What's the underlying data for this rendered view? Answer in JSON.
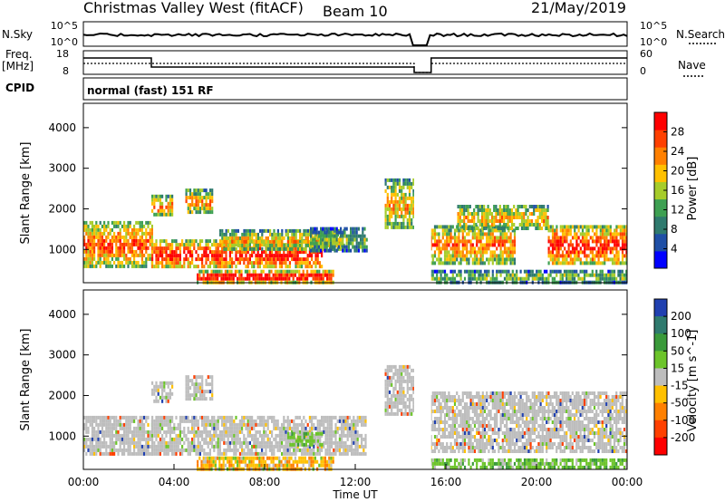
{
  "header": {
    "station": "Christmas Valley West (fitACF)",
    "beam": "Beam 10",
    "date": "21/May/2019"
  },
  "strips": {
    "nsky_label": "N.Sky",
    "nsky_ticks": [
      "10^5",
      "10^0"
    ],
    "nsearch_label": "N.Search",
    "nsearch_ticks": [
      "10^5",
      "10^0"
    ],
    "freq_label_1": "Freq.",
    "freq_label_2": "[MHz]",
    "freq_ticks": [
      "18",
      "8"
    ],
    "nave_label": "Nave",
    "nave_ticks": [
      "60",
      "0"
    ],
    "cpid_label": "CPID",
    "cpid_text": "normal (fast) 151 RF"
  },
  "chart_data": [
    {
      "type": "heatmap",
      "name": "power",
      "ylabel": "Slant Range [km]",
      "yticks": [
        1000,
        2000,
        3000,
        4000
      ],
      "ylim": [
        180,
        4600
      ],
      "xlim": [
        0,
        24
      ],
      "colorbar_label": "Power [dB]",
      "colorbar_ticks": [
        4,
        8,
        12,
        16,
        20,
        24,
        28
      ],
      "colorbar_range": [
        0,
        32
      ],
      "colors": [
        "#0000ff",
        "#1f4fa6",
        "#2f7a6e",
        "#3ea052",
        "#a6cc2a",
        "#ffc000",
        "#ff8000",
        "#ff4000",
        "#ff0000"
      ],
      "echo_regions": [
        {
          "t0": 0.0,
          "t1": 3.0,
          "r0": 600,
          "r1": 1700,
          "level": 0.75
        },
        {
          "t0": 3.0,
          "t1": 3.9,
          "r0": 1850,
          "r1": 2350,
          "level": 0.7
        },
        {
          "t0": 3.0,
          "t1": 10.5,
          "r0": 550,
          "r1": 1250,
          "level": 0.85
        },
        {
          "t0": 4.5,
          "t1": 5.7,
          "r0": 1900,
          "r1": 2500,
          "level": 0.65
        },
        {
          "t0": 5.0,
          "t1": 11.0,
          "r0": 220,
          "r1": 500,
          "level": 0.95
        },
        {
          "t0": 6.0,
          "t1": 11.5,
          "r0": 1000,
          "r1": 1500,
          "level": 0.6
        },
        {
          "t0": 10.0,
          "t1": 12.5,
          "r0": 1000,
          "r1": 1550,
          "level": 0.4
        },
        {
          "t0": 13.3,
          "t1": 14.6,
          "r0": 1500,
          "r1": 2750,
          "level": 0.6
        },
        {
          "t0": 15.3,
          "t1": 19.0,
          "r0": 700,
          "r1": 1600,
          "level": 0.7
        },
        {
          "t0": 16.5,
          "t1": 20.5,
          "r0": 1500,
          "r1": 2100,
          "level": 0.6
        },
        {
          "t0": 20.5,
          "t1": 24.0,
          "r0": 650,
          "r1": 1600,
          "level": 0.85
        },
        {
          "t0": 15.3,
          "t1": 24.0,
          "r0": 220,
          "r1": 500,
          "level": 0.45
        }
      ]
    },
    {
      "type": "heatmap",
      "name": "velocity",
      "ylabel": "Slant Range [km]",
      "yticks": [
        1000,
        2000,
        3000,
        4000
      ],
      "ylim": [
        180,
        4600
      ],
      "xlim": [
        0,
        24
      ],
      "xticks": [
        "00:00",
        "04:00",
        "08:00",
        "12:00",
        "16:00",
        "20:00",
        "00:00"
      ],
      "xtick_hours": [
        0,
        4,
        8,
        12,
        16,
        20,
        24
      ],
      "xlabel": "Time UT",
      "colorbar_label": "Velocity [m s^-1]",
      "colorbar_ticks": [
        200,
        100,
        50,
        15,
        -15,
        -50,
        -100,
        -200
      ],
      "colors": [
        "#2040b0",
        "#2f7a6e",
        "#3a9a3a",
        "#6cc42a",
        "#bdbdbd",
        "#ffc000",
        "#ff8000",
        "#ff4000",
        "#ff0000"
      ],
      "echo_regions": [
        {
          "t0": 0.0,
          "t1": 3.0,
          "r0": 600,
          "r1": 1500,
          "level": "grey"
        },
        {
          "t0": 3.0,
          "t1": 3.9,
          "r0": 1850,
          "r1": 2350,
          "level": "grey"
        },
        {
          "t0": 3.0,
          "t1": 12.5,
          "r0": 550,
          "r1": 1500,
          "level": "grey"
        },
        {
          "t0": 4.5,
          "t1": 5.7,
          "r0": 1900,
          "r1": 2500,
          "level": "grey"
        },
        {
          "t0": 5.0,
          "t1": 11.0,
          "r0": 220,
          "r1": 500,
          "level": "orange"
        },
        {
          "t0": 9.0,
          "t1": 10.5,
          "r0": 800,
          "r1": 1100,
          "level": "green"
        },
        {
          "t0": 13.3,
          "t1": 14.6,
          "r0": 1500,
          "r1": 2750,
          "level": "grey"
        },
        {
          "t0": 15.3,
          "t1": 24.0,
          "r0": 650,
          "r1": 2100,
          "level": "grey"
        },
        {
          "t0": 15.3,
          "t1": 24.0,
          "r0": 220,
          "r1": 450,
          "level": "green"
        }
      ]
    }
  ]
}
